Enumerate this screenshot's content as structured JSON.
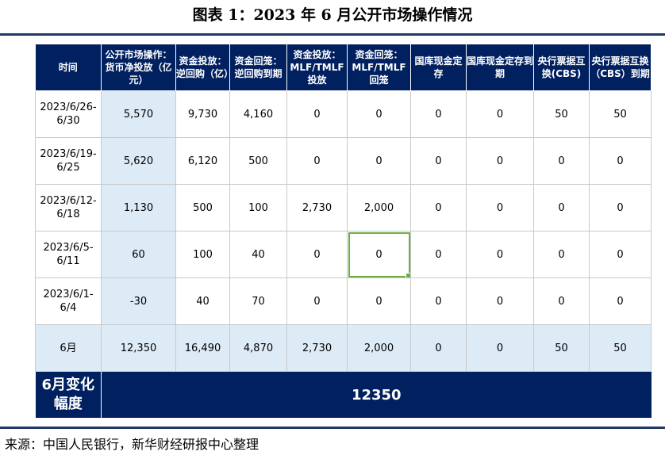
{
  "title": "图表 1：2023 年 6 月公开市场操作情况",
  "headers": [
    "时间",
    "公开市场操作：货币净投放（亿元）",
    "资金投放：逆回购（亿）",
    "资金回笼：逆回购到期",
    "资金投放：MLF/TMLF投放",
    "资金回笼：MLF/TMLF回笼",
    "国库现金定存",
    "国库现金定存到期",
    "央行票据互换(CBS)",
    "央行票据互换（CBS）到期"
  ],
  "rows": [
    [
      "2023/6/26-6/30",
      "5,570",
      "9,730",
      "4,160",
      "0",
      "0",
      "0",
      "0",
      "50",
      "50"
    ],
    [
      "2023/6/19-6/25",
      "5,620",
      "6,120",
      "500",
      "0",
      "0",
      "0",
      "0",
      "0",
      "0"
    ],
    [
      "2023/6/12-6/18",
      "1,130",
      "500",
      "100",
      "2,730",
      "2,000",
      "0",
      "0",
      "0",
      "0"
    ],
    [
      "2023/6/5-6/11",
      "60",
      "100",
      "40",
      "0",
      "0",
      "0",
      "0",
      "0",
      "0"
    ],
    [
      "2023/6/1-6/4",
      "-30",
      "40",
      "70",
      "0",
      "0",
      "0",
      "0",
      "0",
      "0"
    ],
    [
      "6月",
      "12,350",
      "16,490",
      "4,870",
      "2,730",
      "2,000",
      "0",
      "0",
      "50",
      "50"
    ]
  ],
  "footer": {
    "label": "6月变化幅度",
    "value": "12350"
  },
  "source": "来源：中国人民银行，新华财经研报中心整理",
  "colors": {
    "header_bg": "#002060",
    "net_column_bg": "#ddebf7",
    "selection": "#70ad47",
    "rule": "#1f3864"
  }
}
